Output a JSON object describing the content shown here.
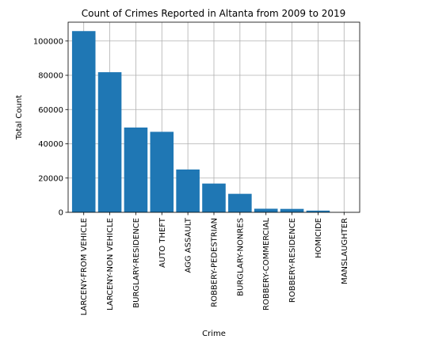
{
  "chart_data": {
    "type": "bar",
    "title": "Count of Crimes Reported in Altanta from 2009 to 2019",
    "xlabel": "Crime",
    "ylabel": "Total Count",
    "categories": [
      "LARCENY-FROM VEHICLE",
      "LARCENY-NON VEHICLE",
      "BURGLARY-RESIDENCE",
      "AUTO THEFT",
      "AGG ASSAULT",
      "ROBBERY-PEDESTRIAN",
      "BURGLARY-NONRES",
      "ROBBERY-COMMERCIAL",
      "ROBBERY-RESIDENCE",
      "HOMICIDE",
      "MANSLAUGHTER"
    ],
    "values": [
      105800,
      81800,
      49500,
      47000,
      25000,
      16800,
      10800,
      2100,
      2000,
      1000,
      50
    ],
    "ylim": [
      0,
      111000
    ],
    "yticks": [
      0,
      20000,
      40000,
      60000,
      80000,
      100000
    ],
    "grid": true,
    "bar_color": "#1f77b4"
  }
}
